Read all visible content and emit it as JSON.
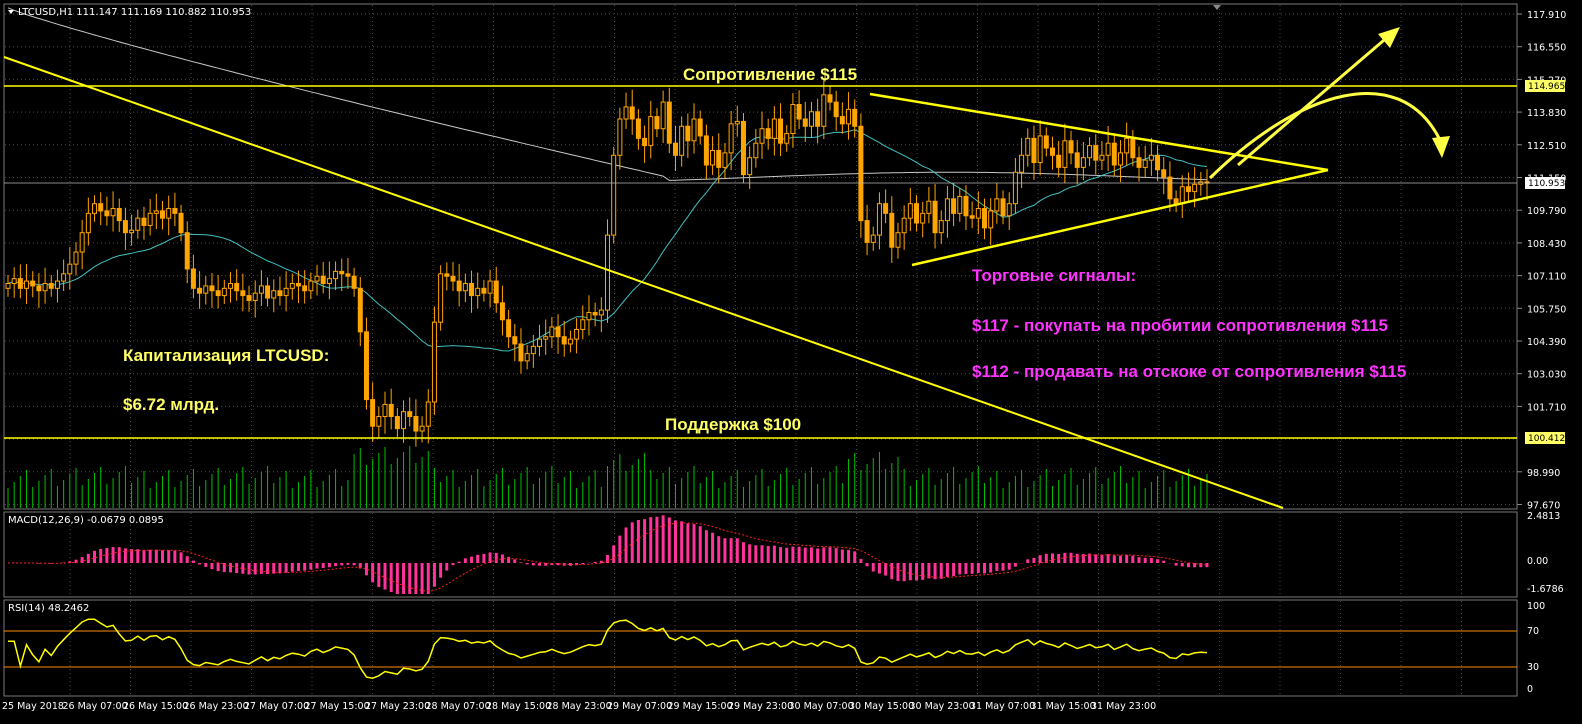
{
  "main_header": {
    "symbol_info": "LTCUSD,H1  111.147 111.169 110.882 110.953"
  },
  "macd_header": {
    "label": "MACD(12,26,9) -0.0679 0.0895"
  },
  "rsi_header": {
    "label": "RSI(14) 48.2462"
  },
  "annotations": {
    "resistance": "Сопротивление $115",
    "support": "Поддержка $100",
    "cap_title": "Капитализация LTCUSD:",
    "cap_value": "$6.72 млрд.",
    "signals_title": "Торговые сигналы:",
    "signal_buy": "$117 - покупать на пробитии сопротивления $115",
    "signal_sell": "$112 - продавать на отскоке от сопротивления $115"
  },
  "price_axis": {
    "ticks": [
      "117.910",
      "116.550",
      "115.270",
      "113.830",
      "112.510",
      "111.150",
      "109.790",
      "108.430",
      "107.110",
      "105.750",
      "104.390",
      "103.030",
      "101.710",
      "100.412",
      "98.990",
      "97.670"
    ],
    "current_price_label": "110.953",
    "resistance_label": "114.965",
    "support_label": "100.412"
  },
  "macd_axis": {
    "ticks": [
      "2.4813",
      "0.00",
      "-1.6786"
    ]
  },
  "rsi_axis": {
    "ticks": [
      "100",
      "70",
      "30",
      "0"
    ]
  },
  "time_axis": {
    "labels": [
      "25 May 2018",
      "26 May 07:00",
      "26 May 15:00",
      "26 May 23:00",
      "27 May 07:00",
      "27 May 15:00",
      "27 May 23:00",
      "28 May 07:00",
      "28 May 15:00",
      "28 May 23:00",
      "29 May 07:00",
      "29 May 15:00",
      "29 May 23:00",
      "30 May 07:00",
      "30 May 15:00",
      "30 May 23:00",
      "31 May 07:00",
      "31 May 15:00",
      "31 May 23:00"
    ]
  },
  "colors": {
    "background": "#000000",
    "bull_candle": "#ffa500",
    "bear_candle": "#ffa500",
    "ma_slow": "#c8c8c8",
    "ma_fast": "#40c0c0",
    "support_resistance": "#ffff00",
    "annotation_yellow": "#ffff66",
    "annotation_magenta": "#ff33ff",
    "volume": "#00c000",
    "macd_hist": "#ff3399",
    "macd_signal": "#ff0000",
    "rsi_line": "#ffff00",
    "rsi_levels": "#ff8c00",
    "grid": "#5a5a5a"
  },
  "chart_data": {
    "type": "candlestick",
    "symbol": "LTCUSD",
    "timeframe": "H1",
    "price_range": [
      97.0,
      118.5
    ],
    "levels": {
      "resistance": 114.965,
      "support": 100.412,
      "current": 110.953
    },
    "closes": [
      106.8,
      107.0,
      106.6,
      106.9,
      106.7,
      106.5,
      106.8,
      106.6,
      106.9,
      107.2,
      107.6,
      108.1,
      108.9,
      109.7,
      110.1,
      109.8,
      109.6,
      109.9,
      109.4,
      108.9,
      109.0,
      109.5,
      109.2,
      109.7,
      109.8,
      109.5,
      109.9,
      109.7,
      108.9,
      107.4,
      106.6,
      106.4,
      106.7,
      106.5,
      106.3,
      106.6,
      106.8,
      106.5,
      106.3,
      106.1,
      106.4,
      106.7,
      106.2,
      106.5,
      106.3,
      106.6,
      106.8,
      106.7,
      106.5,
      106.9,
      107.1,
      106.8,
      107.0,
      107.3,
      107.2,
      107.1,
      106.6,
      104.8,
      102.0,
      100.9,
      101.3,
      101.8,
      101.3,
      100.8,
      101.5,
      101.3,
      100.7,
      100.9,
      101.9,
      105.2,
      107.2,
      107.1,
      106.9,
      106.5,
      106.8,
      106.3,
      106.6,
      106.4,
      106.9,
      106.0,
      105.3,
      104.6,
      104.3,
      103.6,
      103.9,
      104.2,
      104.5,
      104.6,
      105.0,
      104.6,
      104.3,
      104.5,
      104.9,
      105.3,
      105.6,
      105.5,
      105.7,
      108.8,
      112.1,
      113.6,
      114.1,
      113.6,
      112.8,
      112.5,
      113.7,
      113.2,
      114.3,
      112.6,
      112.1,
      113.3,
      112.7,
      113.6,
      112.9,
      111.7,
      112.3,
      111.6,
      112.2,
      113.4,
      113.5,
      111.3,
      112.0,
      112.6,
      113.2,
      112.8,
      113.6,
      112.6,
      113.0,
      114.2,
      113.6,
      113.3,
      113.9,
      113.3,
      114.6,
      114.3,
      113.7,
      113.4,
      114.0,
      113.3,
      109.4,
      108.5,
      108.8,
      110.1,
      109.7,
      108.3,
      108.9,
      109.5,
      110.1,
      109.3,
      109.7,
      110.2,
      108.9,
      109.4,
      110.3,
      109.7,
      110.4,
      109.6,
      109.5,
      109.9,
      109.1,
      109.8,
      110.3,
      109.6,
      110.1,
      111.4,
      112.1,
      112.8,
      111.8,
      112.9,
      112.4,
      112.1,
      111.6,
      112.7,
      112.2,
      111.6,
      112.0,
      112.5,
      111.9,
      112.1,
      112.6,
      111.7,
      112.2,
      112.8,
      112.0,
      111.6,
      111.9,
      112.1,
      111.5,
      111.2,
      110.3,
      110.1,
      110.8,
      110.6,
      110.9,
      111.0,
      110.95
    ]
  }
}
